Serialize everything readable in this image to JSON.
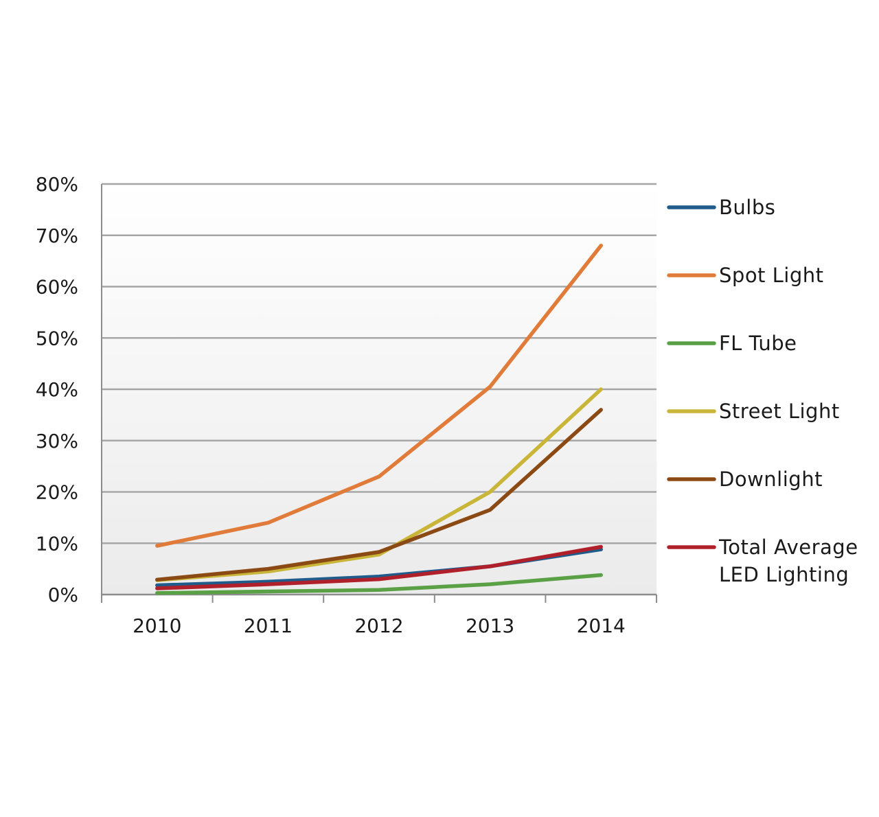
{
  "chart_data": {
    "type": "line",
    "title": "",
    "xlabel": "",
    "ylabel": "",
    "categories": [
      "2010",
      "2011",
      "2012",
      "2013",
      "2014"
    ],
    "ylim": [
      0,
      80
    ],
    "yticks": [
      "0%",
      "10%",
      "20%",
      "30%",
      "40%",
      "50%",
      "60%",
      "70%",
      "80%"
    ],
    "grid": true,
    "legend_position": "right",
    "series": [
      {
        "name": "Bulbs",
        "color": "#1f5c8c",
        "values": [
          1.8,
          2.5,
          3.5,
          5.5,
          8.8
        ]
      },
      {
        "name": "Spot Light",
        "color": "#e07b39",
        "values": [
          9.5,
          14.0,
          23.0,
          40.5,
          68.0
        ]
      },
      {
        "name": "FL Tube",
        "color": "#5aa146",
        "values": [
          0.3,
          0.6,
          0.9,
          2.0,
          3.8
        ]
      },
      {
        "name": "Street Light",
        "color": "#c9b537",
        "values": [
          2.8,
          4.5,
          7.8,
          20.0,
          40.0
        ]
      },
      {
        "name": "Downlight",
        "color": "#8b4a14",
        "values": [
          2.9,
          5.0,
          8.3,
          16.5,
          36.0
        ]
      },
      {
        "name": "Total Average LED Lighting",
        "label_lines": [
          "Total Average",
          "LED Lighting"
        ],
        "color": "#b0202a",
        "values": [
          1.2,
          2.0,
          3.0,
          5.5,
          9.3
        ]
      }
    ]
  }
}
